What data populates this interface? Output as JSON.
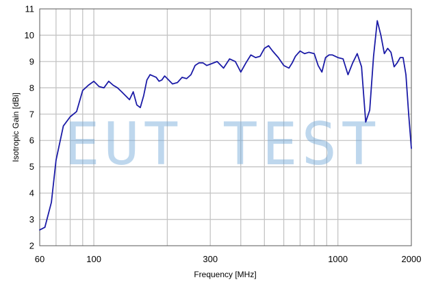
{
  "chart_data": {
    "type": "line",
    "title": "",
    "xlabel": "Frequency [MHz]",
    "ylabel": "Isotropic Gain [dBi]",
    "x_scale": "log",
    "xlim": [
      60,
      2000
    ],
    "ylim": [
      2,
      11
    ],
    "x_ticks": [
      60,
      100,
      300,
      1000,
      2000
    ],
    "x_tick_labels": [
      "60",
      "100",
      "300",
      "1000",
      "2000"
    ],
    "x_minor_gridlines": [
      70,
      80,
      90,
      200,
      400,
      500,
      600,
      700,
      800,
      900
    ],
    "y_ticks": [
      2,
      3,
      4,
      5,
      6,
      7,
      8,
      9,
      10,
      11
    ],
    "y_tick_labels": [
      "2",
      "3",
      "4",
      "5",
      "6",
      "7",
      "8",
      "9",
      "10",
      "11"
    ],
    "grid": true,
    "line_color": "#1a1aa6",
    "watermark": "EUT TEST",
    "series": [
      {
        "x": [
          60,
          63,
          67,
          70,
          75,
          80,
          85,
          90,
          95,
          100,
          105,
          110,
          115,
          120,
          125,
          130,
          140,
          145,
          150,
          155,
          160,
          165,
          170,
          175,
          180,
          185,
          190,
          195,
          200,
          210,
          220,
          230,
          240,
          250,
          260,
          270,
          280,
          290,
          300,
          320,
          340,
          360,
          380,
          400,
          420,
          440,
          460,
          480,
          500,
          520,
          540,
          570,
          600,
          630,
          650,
          670,
          700,
          730,
          760,
          800,
          830,
          860,
          890,
          920,
          950,
          1000,
          1050,
          1100,
          1150,
          1200,
          1250,
          1300,
          1350,
          1400,
          1450,
          1500,
          1550,
          1600,
          1650,
          1700,
          1750,
          1800,
          1850,
          1900,
          1950,
          2000
        ],
        "y": [
          2.6,
          2.7,
          3.65,
          5.25,
          6.55,
          6.9,
          7.1,
          7.9,
          8.1,
          8.25,
          8.05,
          8.0,
          8.25,
          8.1,
          8.0,
          7.85,
          7.55,
          7.85,
          7.35,
          7.25,
          7.7,
          8.3,
          8.5,
          8.45,
          8.4,
          8.25,
          8.3,
          8.45,
          8.35,
          8.15,
          8.2,
          8.4,
          8.35,
          8.5,
          8.85,
          8.95,
          8.95,
          8.85,
          8.9,
          9.0,
          8.75,
          9.1,
          9.0,
          8.6,
          8.95,
          9.25,
          9.15,
          9.2,
          9.5,
          9.6,
          9.4,
          9.15,
          8.85,
          8.75,
          8.95,
          9.2,
          9.4,
          9.3,
          9.35,
          9.3,
          8.85,
          8.6,
          9.15,
          9.25,
          9.25,
          9.15,
          9.1,
          8.5,
          8.95,
          9.3,
          8.8,
          6.7,
          7.15,
          9.2,
          10.55,
          10.0,
          9.3,
          9.5,
          9.35,
          8.8,
          8.95,
          9.15,
          9.15,
          8.5,
          7.0,
          5.7
        ]
      }
    ]
  }
}
